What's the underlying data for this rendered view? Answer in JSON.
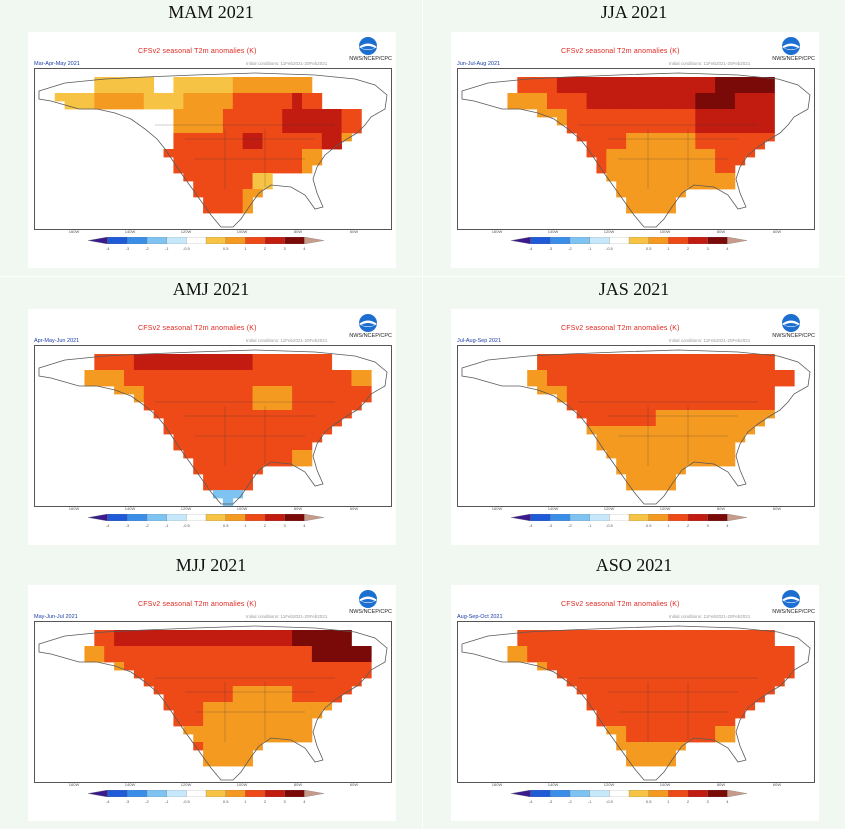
{
  "colors": {
    "ocean": "#ffffff",
    "coast": "#5a5a5a",
    "scale": [
      "#3a1b8c",
      "#1f5bd6",
      "#3b8ee8",
      "#7fc3f2",
      "#c7e8fb",
      "#ffffff",
      "#f6c344",
      "#f59a20",
      "#ee4a18",
      "#c21b10",
      "#7a0a08",
      "#c89a8a"
    ],
    "scale_labels": [
      "-4",
      "-3",
      "-2",
      "-1",
      "-0.5",
      "",
      "0.5",
      "1",
      "2",
      "3",
      "4"
    ]
  },
  "map_header": {
    "title": "CFSv2 seasonal T2m anomalies (K)",
    "agency": "NWS/NCEP/CPC",
    "init": "Initial conditions: 11Feb2021-20Feb2021",
    "lon_labels": [
      "160W",
      "140W",
      "120W",
      "100W",
      "80W",
      "60W"
    ]
  },
  "panels": [
    {
      "title": "MAM 2021",
      "period": "Mar-Apr-May 2021"
    },
    {
      "title": "JJA 2021",
      "period": "Jun-Jul-Aug 2021"
    },
    {
      "title": "AMJ 2021",
      "period": "Apr-May-Jun 2021"
    },
    {
      "title": "JAS 2021",
      "period": "Jul-Aug-Sep 2021"
    },
    {
      "title": "MJJ 2021",
      "period": "May-Jun-Jul 2021"
    },
    {
      "title": "ASO 2021",
      "period": "Aug-Sep-Oct 2021"
    }
  ]
}
